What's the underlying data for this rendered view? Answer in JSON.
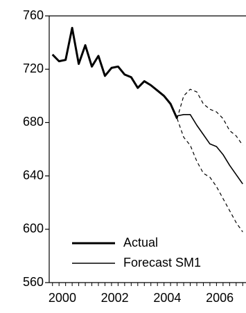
{
  "chart_data": {
    "type": "line",
    "ylim": [
      560,
      760
    ],
    "xlim": [
      1999.875,
      2007.375
    ],
    "y_ticks": [
      {
        "value": 560,
        "label": "560"
      },
      {
        "value": 600,
        "label": "600"
      },
      {
        "value": 640,
        "label": "640"
      },
      {
        "value": 680,
        "label": "680"
      },
      {
        "value": 720,
        "label": "720"
      },
      {
        "value": 760,
        "label": "760"
      }
    ],
    "x_ticks": [
      {
        "value": 2000.375,
        "label": "2000"
      },
      {
        "value": 2002.375,
        "label": "2002"
      },
      {
        "value": 2004.375,
        "label": "2004"
      },
      {
        "value": 2006.375,
        "label": "2006"
      }
    ],
    "x_minor_step": 0.25,
    "legend_position": "bottom-left",
    "series": [
      {
        "name": "Actual",
        "style": "thick",
        "color": "#000000",
        "x": [
          2000.0,
          2000.25,
          2000.5,
          2000.75,
          2001.0,
          2001.25,
          2001.5,
          2001.75,
          2002.0,
          2002.25,
          2002.5,
          2002.75,
          2003.0,
          2003.25,
          2003.5,
          2003.75,
          2004.0,
          2004.25,
          2004.5,
          2004.75
        ],
        "values": [
          731,
          726,
          727,
          751,
          724,
          738,
          722,
          730,
          715,
          721,
          722,
          716,
          714,
          706,
          711,
          708,
          704,
          700,
          694,
          683
        ]
      },
      {
        "name": "Forecast SM1",
        "style": "thin",
        "color": "#000000",
        "x": [
          2004.75,
          2005.0,
          2005.25,
          2005.5,
          2005.75,
          2006.0,
          2006.25,
          2006.5,
          2006.75,
          2007.0,
          2007.25
        ],
        "values": [
          685,
          686,
          686,
          678,
          671,
          664,
          662,
          656,
          648,
          641,
          634
        ]
      },
      {
        "name": "",
        "style": "dashed",
        "color": "#000000",
        "x": [
          2004.75,
          2005.0,
          2005.25,
          2005.5,
          2005.75,
          2006.0,
          2006.25,
          2006.5,
          2006.75,
          2007.0,
          2007.25
        ],
        "values": [
          683,
          700,
          705,
          703,
          694,
          690,
          688,
          683,
          674,
          670,
          663
        ]
      },
      {
        "name": "",
        "style": "dashed",
        "color": "#000000",
        "x": [
          2004.75,
          2005.0,
          2005.25,
          2005.5,
          2005.75,
          2006.0,
          2006.25,
          2006.5,
          2006.75,
          2007.0,
          2007.25
        ],
        "values": [
          683,
          669,
          663,
          651,
          642,
          639,
          632,
          623,
          614,
          605,
          598
        ]
      }
    ],
    "legend": [
      {
        "label": "Actual",
        "style": "thick"
      },
      {
        "label": "Forecast SM1",
        "style": "thin"
      }
    ]
  }
}
